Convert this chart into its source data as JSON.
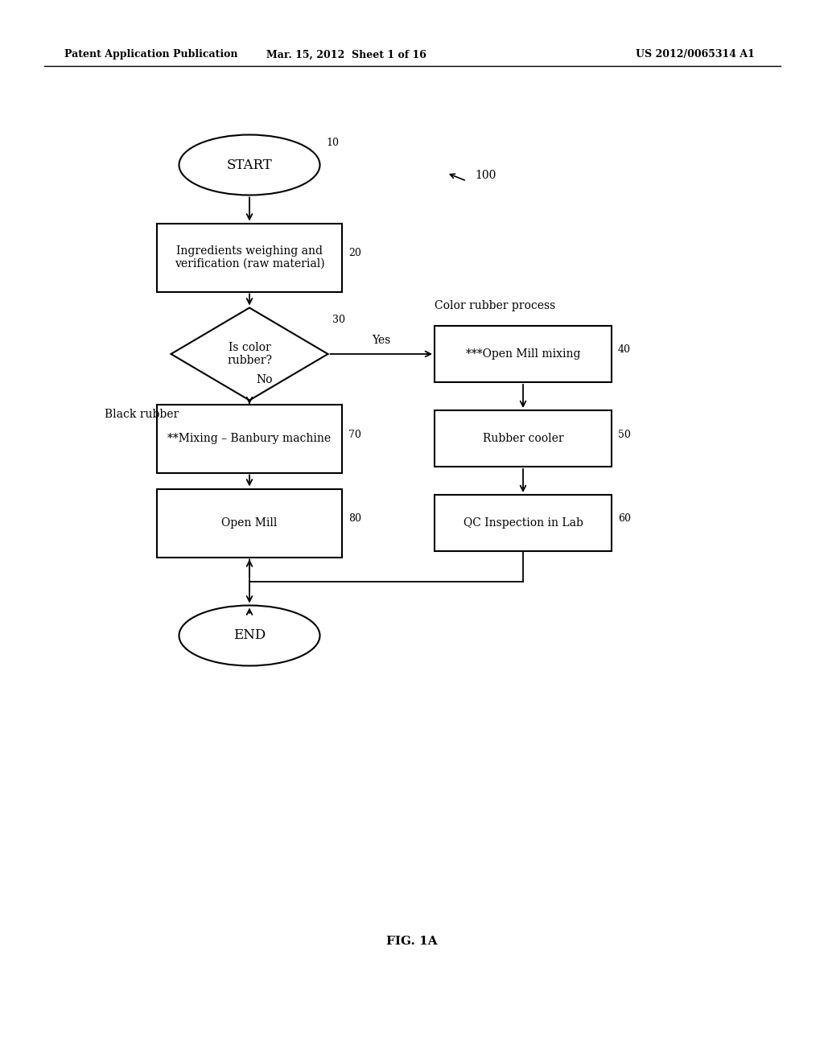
{
  "bg_color": "#ffffff",
  "header_left": "Patent Application Publication",
  "header_mid": "Mar. 15, 2012  Sheet 1 of 16",
  "header_right": "US 2012/0065314 A1",
  "fig_label": "FIG. 1A",
  "diagram_label": "100",
  "color_rubber_label": "Color rubber process",
  "black_rubber_label": "Black rubber",
  "yes_label": "Yes",
  "no_label": "No",
  "start_label": "START",
  "end_label": "END",
  "box20_label": "Ingredients weighing and\nverification (raw material)",
  "box40_label": "***Open Mill mixing",
  "box50_label": "Rubber cooler",
  "box60_label": "QC Inspection in Lab",
  "box70_label": "**Mixing – Banbury machine",
  "box80_label": "Open Mill",
  "diamond_label": "Is color\nrubber?",
  "ref10": "10",
  "ref20": "20",
  "ref30": "30",
  "ref40": "40",
  "ref50": "50",
  "ref60": "60",
  "ref70": "70",
  "ref80": "80"
}
